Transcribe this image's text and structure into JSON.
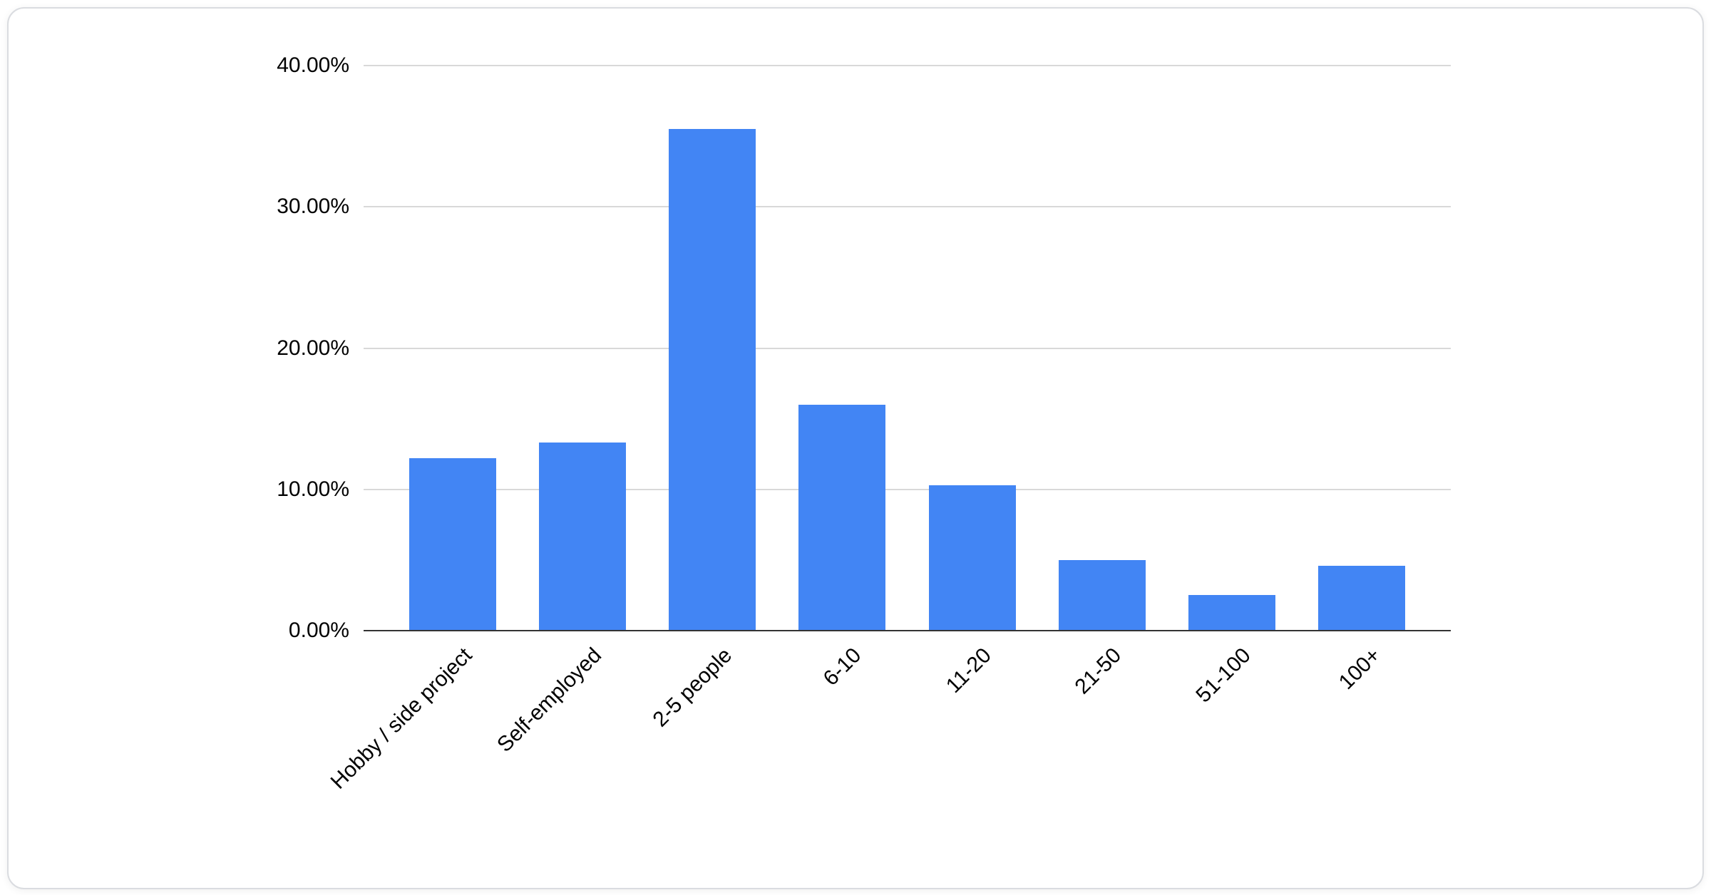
{
  "chart_data": {
    "type": "bar",
    "title": "",
    "xlabel": "",
    "ylabel": "",
    "categories": [
      "Hobby / side project",
      "Self-employed",
      "2-5 people",
      "6-10",
      "11-20",
      "21-50",
      "51-100",
      "100+"
    ],
    "values": [
      12.2,
      13.3,
      35.5,
      16.0,
      10.3,
      5.0,
      2.5,
      4.6
    ],
    "ylim": [
      0,
      40
    ],
    "y_ticks": [
      "0.00%",
      "10.00%",
      "20.00%",
      "30.00%",
      "40.00%"
    ],
    "grid": true,
    "legend_position": "none",
    "bar_color": "#4285f4"
  },
  "colors": {
    "bar": "#4285f4",
    "gridline": "#d9d9d9",
    "axis_line": "#333333",
    "text": "#000000",
    "card_border": "#dadce0",
    "background": "#ffffff"
  }
}
